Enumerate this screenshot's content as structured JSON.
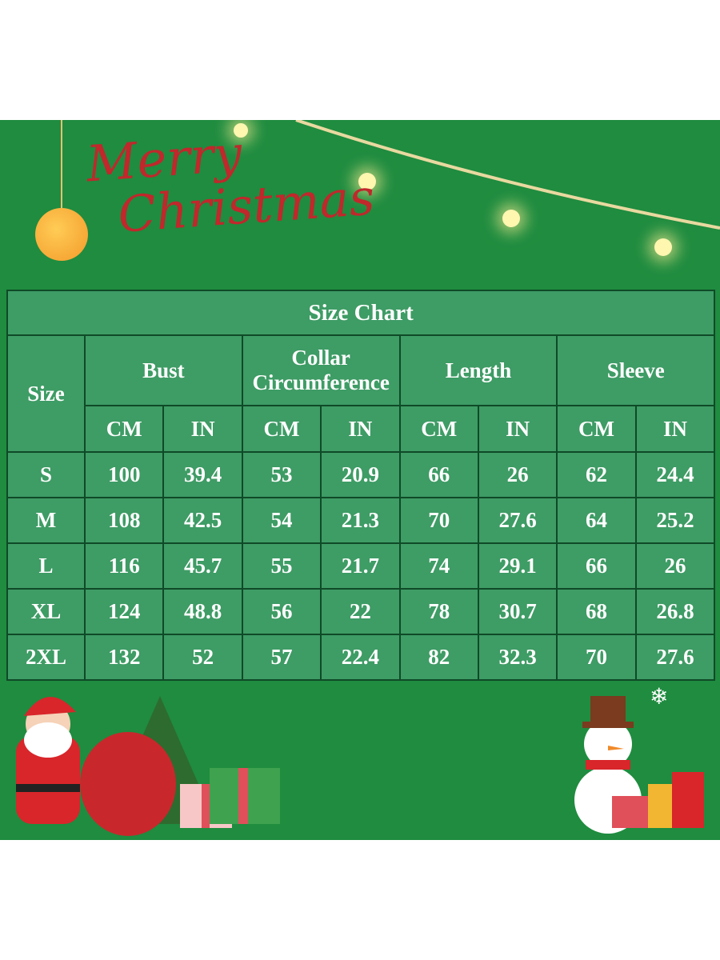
{
  "greeting": [
    "Merry",
    "Christmas"
  ],
  "table": {
    "title": "Size Chart",
    "size_header": "Size",
    "groups": [
      "Bust",
      "Collar Circumference",
      "Length",
      "Sleeve"
    ],
    "collar_lines": [
      "Collar",
      "Circumference"
    ],
    "units": [
      "CM",
      "IN"
    ],
    "rows": [
      [
        "S",
        "100",
        "39.4",
        "53",
        "20.9",
        "66",
        "26",
        "62",
        "24.4"
      ],
      [
        "M",
        "108",
        "42.5",
        "54",
        "21.3",
        "70",
        "27.6",
        "64",
        "25.2"
      ],
      [
        "L",
        "116",
        "45.7",
        "55",
        "21.7",
        "74",
        "29.1",
        "66",
        "26"
      ],
      [
        "XL",
        "124",
        "48.8",
        "56",
        "22",
        "78",
        "30.7",
        "68",
        "26.8"
      ],
      [
        "2XL",
        "132",
        "52",
        "57",
        "22.4",
        "82",
        "32.3",
        "70",
        "27.6"
      ]
    ]
  },
  "colors": {
    "background": "#1f8c3f",
    "cell": "#3e9c65",
    "border": "#0f4a27",
    "script": "#c0282c"
  }
}
